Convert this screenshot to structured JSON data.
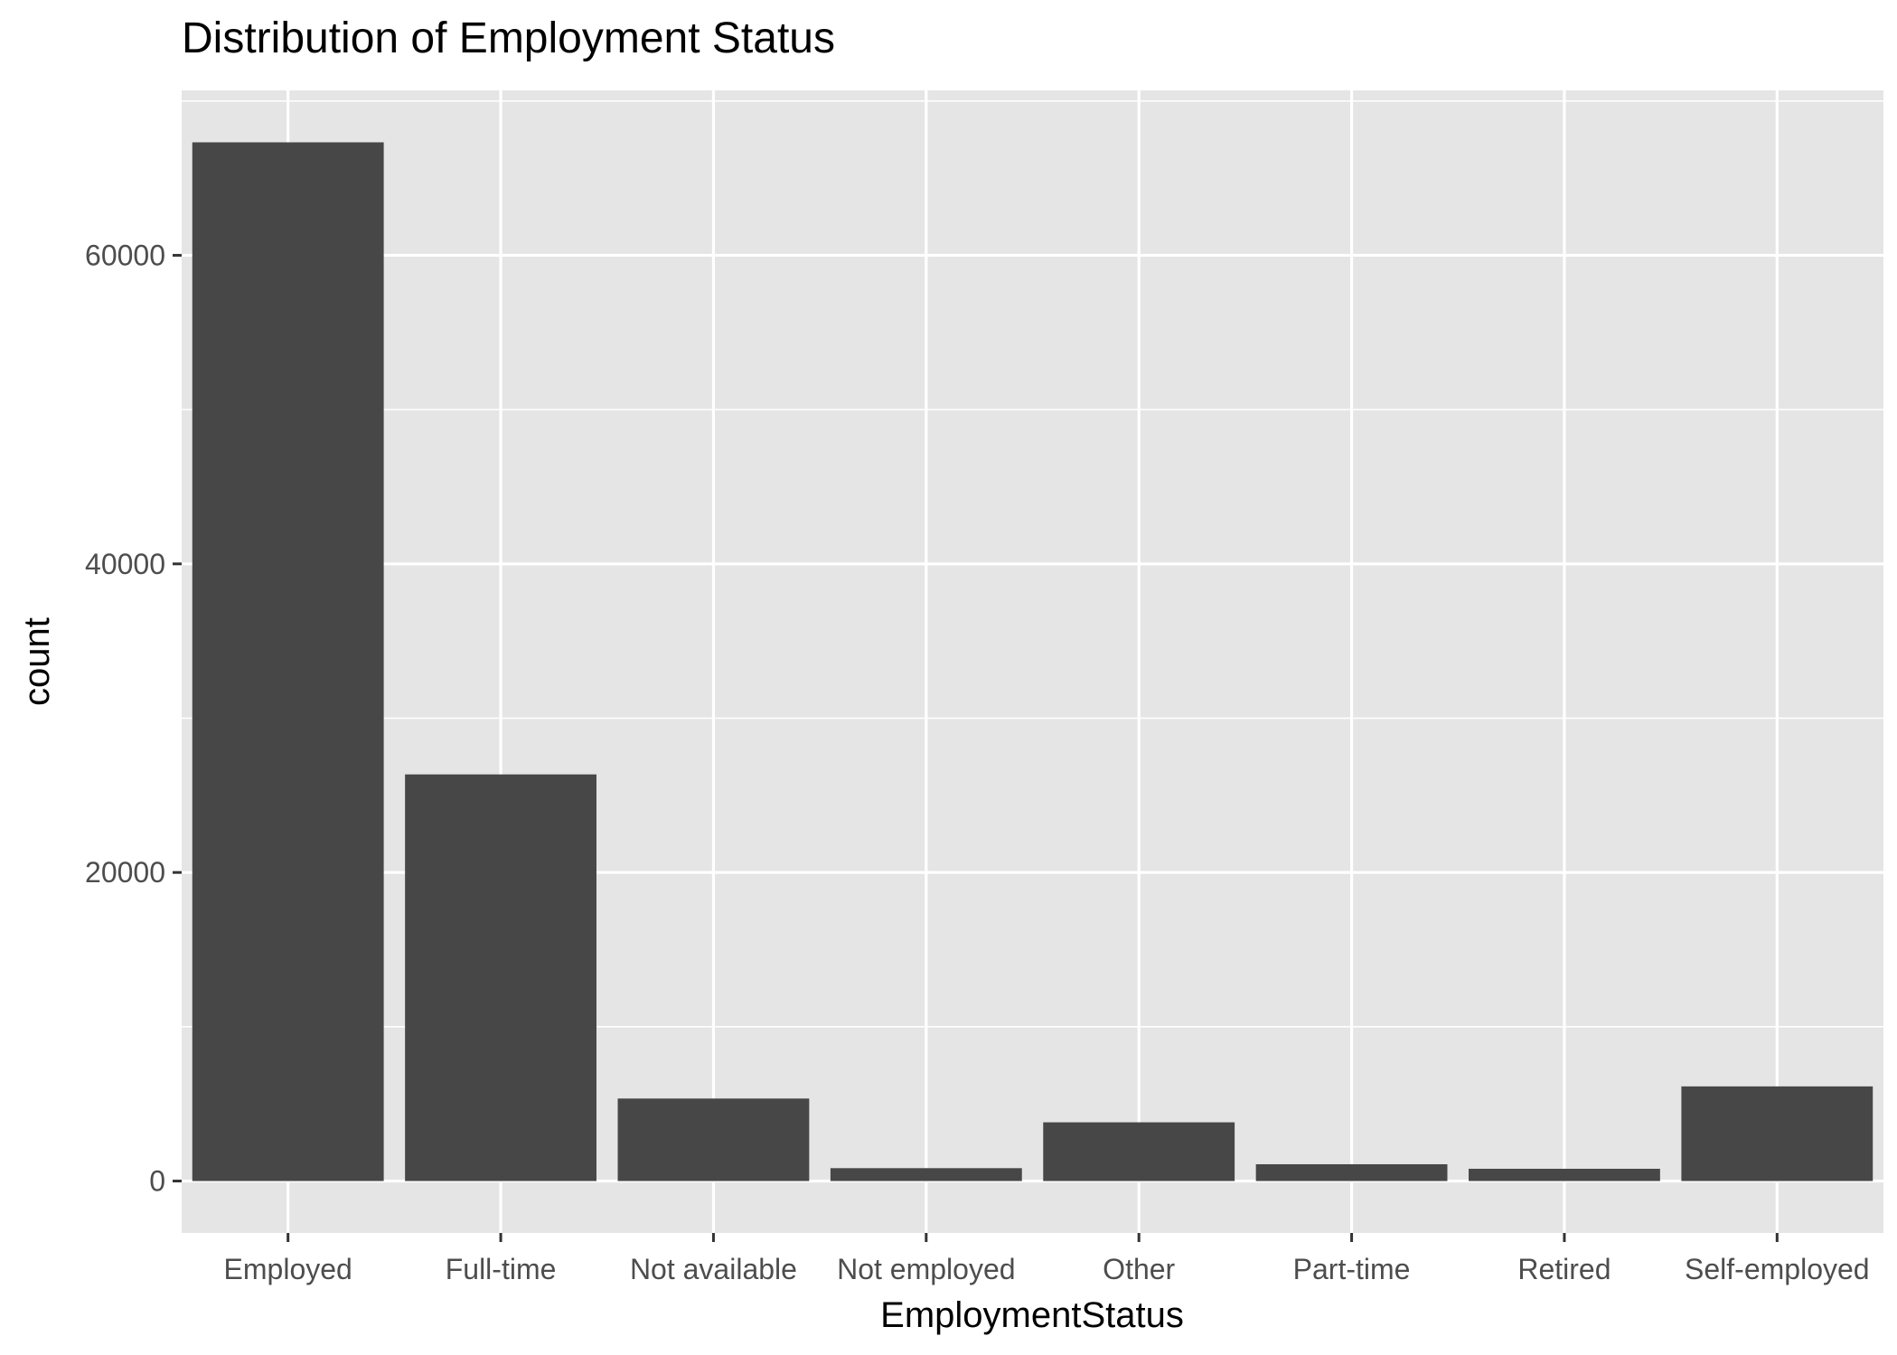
{
  "chart_data": {
    "type": "bar",
    "title": "Distribution of Employment Status",
    "xlabel": "EmploymentStatus",
    "ylabel": "count",
    "categories": [
      "Employed",
      "Full-time",
      "Not available",
      "Not employed",
      "Other",
      "Part-time",
      "Retired",
      "Self-employed"
    ],
    "values": [
      67322,
      26355,
      5347,
      835,
      3806,
      1088,
      795,
      6134
    ],
    "ylim": [
      -3366,
      70688
    ],
    "yticks": [
      0,
      20000,
      40000,
      60000
    ],
    "grid": true,
    "legend": "none",
    "colors": {
      "bar": "#474747",
      "panel": "#e5e5e5",
      "grid": "#ffffff",
      "tick": "#333333"
    }
  }
}
